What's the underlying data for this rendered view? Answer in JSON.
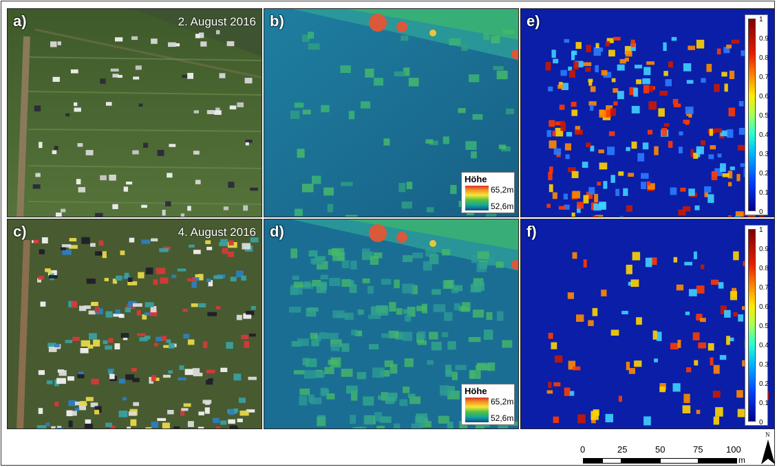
{
  "panels": {
    "a": {
      "label": "a)",
      "date": "2. August 2016"
    },
    "b": {
      "label": "b)"
    },
    "c": {
      "label": "c)",
      "date": "4. August 2016"
    },
    "d": {
      "label": "d)"
    },
    "e": {
      "label": "e)"
    },
    "f": {
      "label": "f)"
    }
  },
  "height_legend": {
    "title": "Höhe",
    "max": "65,2m",
    "min": "52,6m"
  },
  "probability_colorbar": {
    "ticks": [
      "1",
      "0.9",
      "0.8",
      "0.7",
      "0.6",
      "0.5",
      "0.4",
      "0.3",
      "0.2",
      "0.1",
      "0"
    ]
  },
  "scale_bar": {
    "labels": [
      "0",
      "25",
      "50",
      "75",
      "100"
    ],
    "unit": "m"
  },
  "north_arrow": {
    "label": "N"
  },
  "colors": {
    "grass": "#4a6a2e",
    "dsm_low": "#1a6e93",
    "dsm_high": "#d9302a",
    "prob_background": "#0a1ea8"
  }
}
